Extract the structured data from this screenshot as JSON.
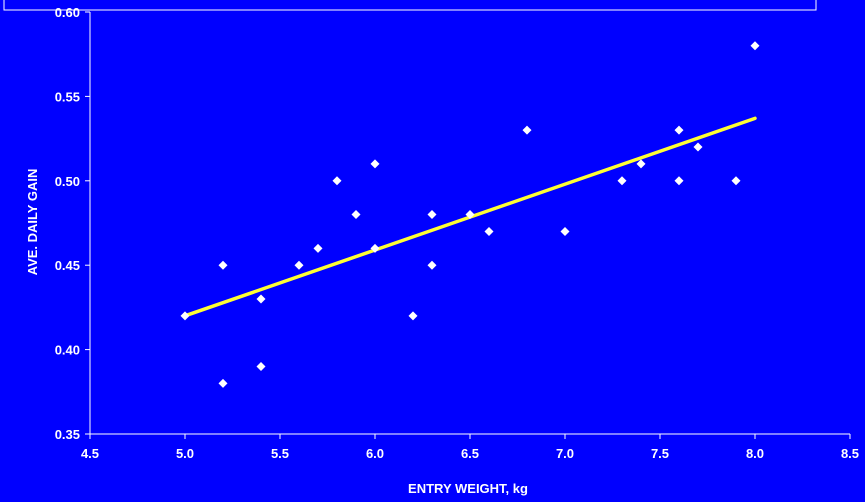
{
  "colors": {
    "background": "#0000FF",
    "axis": "#FFFFFF",
    "points": "#FFFFFF",
    "trendline": "#FFFF33"
  },
  "chart_data": {
    "type": "scatter",
    "title": "",
    "xlabel": "ENTRY WEIGHT, kg",
    "ylabel": "AVE. DAILY GAIN",
    "xlim": [
      4.5,
      8.5
    ],
    "ylim": [
      0.35,
      0.6
    ],
    "x_ticks": [
      "4.5",
      "5.0",
      "5.5",
      "6.0",
      "6.5",
      "7.0",
      "7.5",
      "8.0",
      "8.5"
    ],
    "y_ticks": [
      "0.35",
      "0.40",
      "0.45",
      "0.50",
      "0.55",
      "0.60"
    ],
    "grid": false,
    "legend": "none",
    "series": [
      {
        "points": [
          [
            5.0,
            0.42
          ],
          [
            5.2,
            0.45
          ],
          [
            5.2,
            0.38
          ],
          [
            5.4,
            0.43
          ],
          [
            5.4,
            0.39
          ],
          [
            5.6,
            0.45
          ],
          [
            5.7,
            0.46
          ],
          [
            5.8,
            0.5
          ],
          [
            5.9,
            0.48
          ],
          [
            6.0,
            0.51
          ],
          [
            6.0,
            0.46
          ],
          [
            6.2,
            0.42
          ],
          [
            6.3,
            0.48
          ],
          [
            6.3,
            0.45
          ],
          [
            6.5,
            0.48
          ],
          [
            6.6,
            0.47
          ],
          [
            6.8,
            0.53
          ],
          [
            7.0,
            0.47
          ],
          [
            7.3,
            0.5
          ],
          [
            7.4,
            0.51
          ],
          [
            7.6,
            0.53
          ],
          [
            7.6,
            0.5
          ],
          [
            7.7,
            0.52
          ],
          [
            7.9,
            0.5
          ],
          [
            8.0,
            0.58
          ]
        ]
      }
    ],
    "trendline": {
      "x": [
        5.0,
        8.0
      ],
      "y": [
        0.42,
        0.537
      ]
    }
  }
}
